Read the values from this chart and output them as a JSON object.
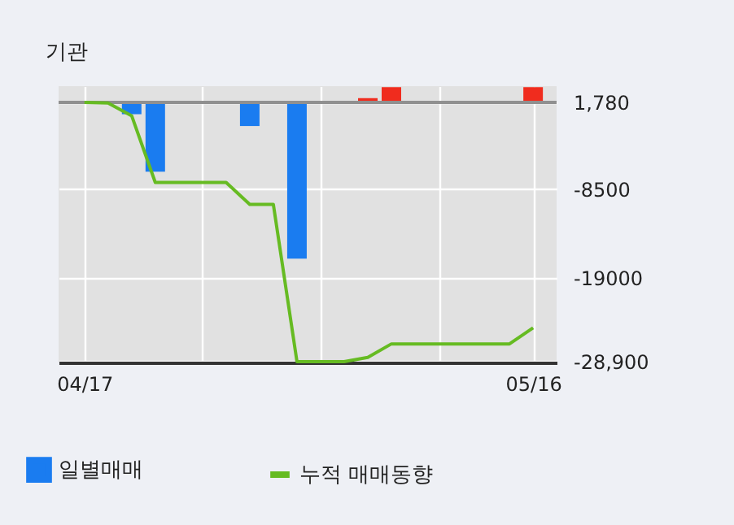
{
  "chart_data": {
    "type": "bar",
    "title": "기관",
    "categories": [
      "04/17",
      null,
      null,
      null,
      null,
      null,
      null,
      null,
      null,
      null,
      null,
      null,
      null,
      null,
      null,
      null,
      null,
      null,
      null,
      "05/16"
    ],
    "series": [
      {
        "name": "일별매매",
        "base": [
          null,
          null,
          1780,
          1780,
          null,
          null,
          null,
          1780,
          null,
          1780,
          null,
          null,
          1780,
          1780,
          null,
          null,
          null,
          null,
          null,
          1780
        ],
        "values": [
          null,
          null,
          -1400,
          -8200,
          null,
          null,
          null,
          -2800,
          null,
          -18500,
          null,
          null,
          500,
          1800,
          null,
          null,
          null,
          null,
          null,
          1800
        ],
        "colors": [
          null,
          null,
          "#1a7cf0",
          "#1a7cf0",
          null,
          null,
          null,
          "#1a7cf0",
          null,
          "#1a7cf0",
          null,
          null,
          "#f02c1e",
          "#f02c1e",
          null,
          null,
          null,
          null,
          null,
          "#f02c1e"
        ]
      },
      {
        "name": "누적 매매동향",
        "type": "line",
        "color": "#66bb22",
        "values": [
          1780,
          1700,
          200,
          -7700,
          -7700,
          -7700,
          -7700,
          -10300,
          -10300,
          -28900,
          -28900,
          -28900,
          -28400,
          -26800,
          -26800,
          -26800,
          -26800,
          -26800,
          -26800,
          -24900
        ]
      }
    ],
    "ylim": [
      -29000,
      3700
    ],
    "yticks": [
      {
        "value": 1780,
        "label": "1,780"
      },
      -8500,
      -19000,
      {
        "value": -28900,
        "label": "-28,900"
      }
    ],
    "ref_lines": [
      {
        "axis": "y",
        "value": 1780,
        "color": "#909090"
      }
    ],
    "grid": true,
    "legend": "bottom"
  }
}
